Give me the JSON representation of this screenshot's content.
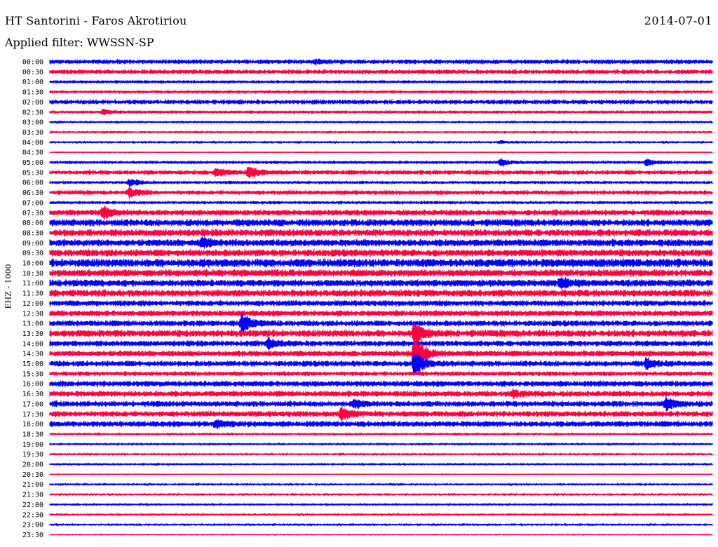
{
  "header": {
    "station": "HT Santorini - Faros Akrotiriou",
    "date": "2014-07-01",
    "filter": "Applied filter: WWSSN-SP",
    "channel": "EHZ - 1000"
  },
  "chart_data": {
    "type": "helicorder",
    "title": "HT Santorini - Faros Akrotiriou",
    "date": "2014-07-01",
    "filter": "WWSSN-SP",
    "channel_label": "EHZ - 1000",
    "row_labels": [
      "00:00",
      "00:30",
      "01:00",
      "01:30",
      "02:00",
      "02:30",
      "03:00",
      "03:30",
      "04:00",
      "04:30",
      "05:00",
      "05:30",
      "06:00",
      "06:30",
      "07:00",
      "07:30",
      "08:00",
      "08:30",
      "09:00",
      "09:30",
      "10:00",
      "10:30",
      "11:00",
      "11:30",
      "12:00",
      "12:30",
      "13:00",
      "13:30",
      "14:00",
      "14:30",
      "15:00",
      "15:30",
      "16:00",
      "16:30",
      "17:00",
      "17:30",
      "18:00",
      "18:30",
      "19:00",
      "19:30",
      "20:00",
      "20:30",
      "21:00",
      "21:30",
      "22:00",
      "22:30",
      "23:00",
      "23:30"
    ],
    "colors": {
      "even": "#0000ff",
      "odd": "#ff0040"
    },
    "noise_level": [
      3,
      3,
      2,
      2,
      3,
      2,
      1,
      1,
      1,
      0.5,
      2,
      3,
      2,
      3,
      2,
      4,
      5,
      5,
      5,
      5,
      6,
      5,
      5,
      5,
      4,
      4,
      4,
      5,
      4,
      4,
      4,
      3,
      4,
      4,
      4,
      4,
      4,
      1,
      1,
      1,
      1,
      0.5,
      1,
      1,
      1,
      1,
      1,
      0.5
    ],
    "events": [
      {
        "row": 0,
        "at": 0.4,
        "amp": 3
      },
      {
        "row": 5,
        "at": 0.08,
        "amp": 4
      },
      {
        "row": 8,
        "at": 0.68,
        "amp": 3
      },
      {
        "row": 10,
        "at": 0.68,
        "amp": 6
      },
      {
        "row": 10,
        "at": 0.9,
        "amp": 5
      },
      {
        "row": 11,
        "at": 0.25,
        "amp": 7
      },
      {
        "row": 11,
        "at": 0.3,
        "amp": 9
      },
      {
        "row": 12,
        "at": 0.12,
        "amp": 6
      },
      {
        "row": 13,
        "at": 0.12,
        "amp": 7
      },
      {
        "row": 15,
        "at": 0.08,
        "amp": 10
      },
      {
        "row": 18,
        "at": 0.23,
        "amp": 6
      },
      {
        "row": 22,
        "at": 0.77,
        "amp": 7
      },
      {
        "row": 26,
        "at": 0.29,
        "amp": 14
      },
      {
        "row": 27,
        "at": 0.55,
        "amp": 16
      },
      {
        "row": 28,
        "at": 0.33,
        "amp": 7
      },
      {
        "row": 29,
        "at": 0.55,
        "amp": 32
      },
      {
        "row": 30,
        "at": 0.55,
        "amp": 20
      },
      {
        "row": 30,
        "at": 0.9,
        "amp": 7
      },
      {
        "row": 33,
        "at": 0.7,
        "amp": 5
      },
      {
        "row": 34,
        "at": 0.46,
        "amp": 6
      },
      {
        "row": 34,
        "at": 0.93,
        "amp": 9
      },
      {
        "row": 35,
        "at": 0.44,
        "amp": 9
      },
      {
        "row": 36,
        "at": 0.25,
        "amp": 6
      }
    ]
  }
}
